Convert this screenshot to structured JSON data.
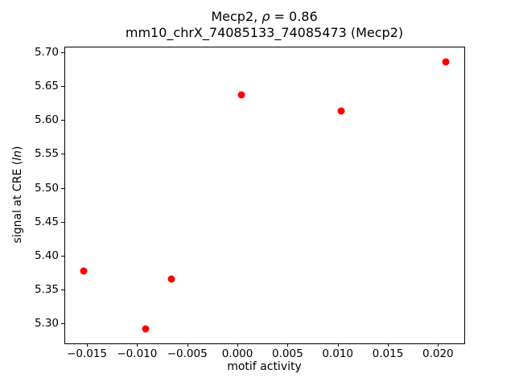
{
  "title": {
    "line1_prefix": "Mecp2, ",
    "line1_rho": "ρ",
    "line1_suffix": " = 0.86",
    "line2": "mm10_chrX_74085133_74085473 (Mecp2)"
  },
  "axes": {
    "xlabel": "motif activity",
    "ylabel_prefix": "signal at CRE (",
    "ylabel_italic": "ln",
    "ylabel_suffix": ")"
  },
  "colors": {
    "marker": "#ff0000",
    "spine": "#000000",
    "text": "#000000",
    "background": "#ffffff"
  },
  "chart_data": {
    "type": "scatter",
    "title": "Mecp2, ρ = 0.86\nmm10_chrX_74085133_74085473 (Mecp2)",
    "xlabel": "motif activity",
    "ylabel": "signal at CRE (ln)",
    "x": [
      -0.0154,
      -0.0092,
      -0.0067,
      0.0003,
      0.0103,
      0.0207
    ],
    "y": [
      5.379,
      5.293,
      5.367,
      5.638,
      5.614,
      5.687
    ],
    "marker_color": "#ff0000",
    "marker_size_px": 9,
    "xlim": [
      -0.01725,
      0.02254
    ],
    "ylim": [
      5.272,
      5.708
    ],
    "xticks": {
      "values": [
        -0.015,
        -0.01,
        -0.005,
        0.0,
        0.005,
        0.01,
        0.015,
        0.02
      ],
      "labels": [
        "−0.015",
        "−0.010",
        "−0.005",
        "0.000",
        "0.005",
        "0.010",
        "0.015",
        "0.020"
      ]
    },
    "yticks": {
      "values": [
        5.3,
        5.35,
        5.4,
        5.45,
        5.5,
        5.55,
        5.6,
        5.65,
        5.7
      ],
      "labels": [
        "5.30",
        "5.35",
        "5.40",
        "5.45",
        "5.50",
        "5.55",
        "5.60",
        "5.65",
        "5.70"
      ]
    },
    "grid": false,
    "legend": null
  }
}
